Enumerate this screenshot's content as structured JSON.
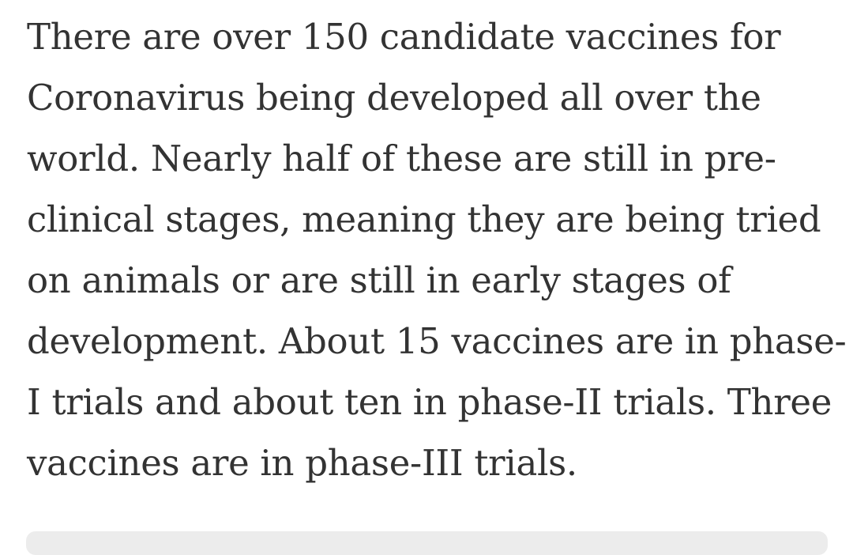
{
  "article": {
    "lines": [
      "There are over 150 candidate vaccines for",
      "Coronavirus being developed all over the",
      "world. Nearly half of these are still in pre-",
      "clinical stages, meaning they are being tried",
      "on animals or are still in early stages of",
      "development. About 15 vaccines are in phase-",
      "I trials and about ten in phase-II trials. Three",
      "vaccines are in phase-III trials."
    ]
  }
}
